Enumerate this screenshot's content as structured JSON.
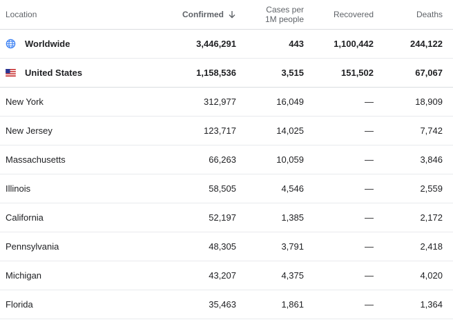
{
  "columns": {
    "location": "Location",
    "confirmed": "Confirmed",
    "cases_line1": "Cases per",
    "cases_line2": "1M people",
    "recovered": "Recovered",
    "deaths": "Deaths"
  },
  "summary": [
    {
      "location": "Worldwide",
      "icon": "globe-icon",
      "confirmed": "3,446,291",
      "cases": "443",
      "recovered": "1,100,442",
      "deaths": "244,122"
    },
    {
      "location": "United States",
      "icon": "us-flag-icon",
      "confirmed": "1,158,536",
      "cases": "3,515",
      "recovered": "151,502",
      "deaths": "67,067"
    }
  ],
  "rows": [
    {
      "location": "New York",
      "confirmed": "312,977",
      "cases": "16,049",
      "recovered": "—",
      "deaths": "18,909"
    },
    {
      "location": "New Jersey",
      "confirmed": "123,717",
      "cases": "14,025",
      "recovered": "—",
      "deaths": "7,742"
    },
    {
      "location": "Massachusetts",
      "confirmed": "66,263",
      "cases": "10,059",
      "recovered": "—",
      "deaths": "3,846"
    },
    {
      "location": "Illinois",
      "confirmed": "58,505",
      "cases": "4,546",
      "recovered": "—",
      "deaths": "2,559"
    },
    {
      "location": "California",
      "confirmed": "52,197",
      "cases": "1,385",
      "recovered": "—",
      "deaths": "2,172"
    },
    {
      "location": "Pennsylvania",
      "confirmed": "48,305",
      "cases": "3,791",
      "recovered": "—",
      "deaths": "2,418"
    },
    {
      "location": "Michigan",
      "confirmed": "43,207",
      "cases": "4,375",
      "recovered": "—",
      "deaths": "4,020"
    },
    {
      "location": "Florida",
      "confirmed": "35,463",
      "cases": "1,861",
      "recovered": "—",
      "deaths": "1,364"
    }
  ],
  "colors": {
    "globe": "#4285f4",
    "flag_red": "#c62828",
    "flag_blue": "#283593"
  }
}
